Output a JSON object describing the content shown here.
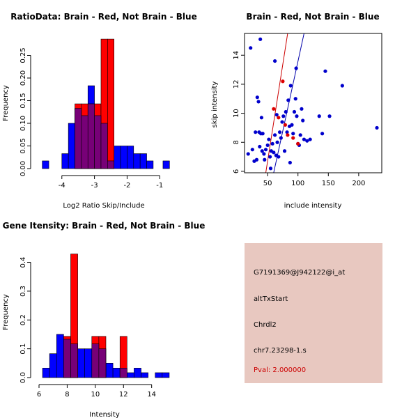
{
  "colors": {
    "red": "#ff0000",
    "blue": "#0000ff",
    "overlap": "#770077",
    "panel_bg": "#e8c8c0",
    "pval": "#cc0000"
  },
  "chart_data": [
    {
      "type": "bar",
      "subtype": "overlaid-histogram",
      "title": "RatioData: Brain - Red, Not Brain - Blue",
      "xlabel": "Log2 Ratio Skip/Include",
      "ylabel": "Frequency",
      "xlim": [
        -4.7,
        -0.6
      ],
      "ylim": [
        0,
        0.28
      ],
      "xticks": [
        -4,
        -3,
        -2,
        -1
      ],
      "yticks": [
        0.0,
        0.05,
        0.1,
        0.15,
        0.2,
        0.25
      ],
      "series": [
        {
          "name": "Not Brain",
          "color": "blue",
          "bins": [
            {
              "x0": -4.6,
              "x1": -4.4,
              "y": 0.017
            },
            {
              "x0": -4.0,
              "x1": -3.8,
              "y": 0.033
            },
            {
              "x0": -3.8,
              "x1": -3.6,
              "y": 0.1
            },
            {
              "x0": -3.6,
              "x1": -3.4,
              "y": 0.133
            },
            {
              "x0": -3.4,
              "x1": -3.2,
              "y": 0.117
            },
            {
              "x0": -3.2,
              "x1": -3.0,
              "y": 0.183
            },
            {
              "x0": -3.0,
              "x1": -2.8,
              "y": 0.117
            },
            {
              "x0": -2.8,
              "x1": -2.6,
              "y": 0.1
            },
            {
              "x0": -2.6,
              "x1": -2.4,
              "y": 0.017
            },
            {
              "x0": -2.4,
              "x1": -2.2,
              "y": 0.05
            },
            {
              "x0": -2.2,
              "x1": -2.0,
              "y": 0.05
            },
            {
              "x0": -2.0,
              "x1": -1.8,
              "y": 0.05
            },
            {
              "x0": -1.8,
              "x1": -1.6,
              "y": 0.033
            },
            {
              "x0": -1.6,
              "x1": -1.4,
              "y": 0.033
            },
            {
              "x0": -1.4,
              "x1": -1.2,
              "y": 0.017
            },
            {
              "x0": -0.9,
              "x1": -0.7,
              "y": 0.017
            }
          ]
        },
        {
          "name": "Brain",
          "color": "red",
          "bins": [
            {
              "x0": -3.6,
              "x1": -3.4,
              "y": 0.143
            },
            {
              "x0": -3.4,
              "x1": -3.2,
              "y": 0.143
            },
            {
              "x0": -3.2,
              "x1": -3.0,
              "y": 0.143
            },
            {
              "x0": -3.0,
              "x1": -2.8,
              "y": 0.143
            },
            {
              "x0": -2.8,
              "x1": -2.6,
              "y": 0.286
            },
            {
              "x0": -2.6,
              "x1": -2.4,
              "y": 0.286
            }
          ]
        }
      ]
    },
    {
      "type": "scatter",
      "title": "Brain - Red, Not Brain - Blue",
      "xlabel": "include intensity",
      "ylabel": "skip intensity",
      "xlim": [
        12,
        238
      ],
      "ylim": [
        5.9,
        15.5
      ],
      "xticks": [
        50,
        100,
        150,
        200
      ],
      "yticks": [
        6,
        8,
        10,
        12,
        14
      ],
      "fit_lines": [
        {
          "name": "Brain fit",
          "color": "red",
          "from": [
            47,
            5.9
          ],
          "to": [
            83,
            15.5
          ]
        },
        {
          "name": "Not Brain fit",
          "color": "blue",
          "from": [
            60,
            5.9
          ],
          "to": [
            110,
            15.5
          ]
        }
      ],
      "series": [
        {
          "name": "Not Brain",
          "color": "blue",
          "points": [
            [
              22,
              14.5
            ],
            [
              38,
              15.1
            ],
            [
              62,
              13.6
            ],
            [
              88,
              11.9
            ],
            [
              97,
              13.1
            ],
            [
              145,
              12.9
            ],
            [
              173,
              11.9
            ],
            [
              230,
              9.0
            ],
            [
              18,
              7.2
            ],
            [
              25,
              7.5
            ],
            [
              28,
              6.7
            ],
            [
              30,
              8.7
            ],
            [
              32,
              6.8
            ],
            [
              33,
              11.1
            ],
            [
              35,
              10.8
            ],
            [
              36,
              8.7
            ],
            [
              37,
              7.7
            ],
            [
              39,
              8.6
            ],
            [
              40,
              9.7
            ],
            [
              41,
              7.4
            ],
            [
              42,
              8.6
            ],
            [
              44,
              7.2
            ],
            [
              45,
              6.8
            ],
            [
              47,
              7.5
            ],
            [
              50,
              7.8
            ],
            [
              52,
              8.2
            ],
            [
              54,
              7.0
            ],
            [
              55,
              6.2
            ],
            [
              56,
              7.4
            ],
            [
              58,
              7.9
            ],
            [
              60,
              7.3
            ],
            [
              62,
              8.5
            ],
            [
              64,
              7.1
            ],
            [
              65,
              9.9
            ],
            [
              66,
              8.0
            ],
            [
              68,
              7.0
            ],
            [
              70,
              8.7
            ],
            [
              72,
              8.3
            ],
            [
              74,
              9.4
            ],
            [
              76,
              9.8
            ],
            [
              78,
              7.4
            ],
            [
              80,
              10.1
            ],
            [
              82,
              8.7
            ],
            [
              84,
              10.9
            ],
            [
              86,
              9.1
            ],
            [
              87,
              6.6
            ],
            [
              90,
              9.2
            ],
            [
              92,
              8.6
            ],
            [
              94,
              10.1
            ],
            [
              96,
              11.0
            ],
            [
              98,
              9.8
            ],
            [
              100,
              7.9
            ],
            [
              102,
              7.8
            ],
            [
              104,
              8.5
            ],
            [
              106,
              10.3
            ],
            [
              108,
              9.5
            ],
            [
              110,
              8.2
            ],
            [
              115,
              8.1
            ],
            [
              120,
              8.2
            ],
            [
              135,
              9.8
            ],
            [
              140,
              8.6
            ],
            [
              152,
              9.8
            ]
          ]
        },
        {
          "name": "Brain",
          "color": "red",
          "points": [
            [
              60,
              10.3
            ],
            [
              68,
              9.7
            ],
            [
              75,
              12.2
            ],
            [
              79,
              9.2
            ],
            [
              83,
              8.5
            ],
            [
              92,
              8.3
            ],
            [
              100,
              7.9
            ]
          ]
        }
      ]
    },
    {
      "type": "bar",
      "subtype": "overlaid-histogram",
      "title": "Gene Itensity: Brain - Red, Not Brain - Blue",
      "xlabel": "Intensity",
      "ylabel": "Frequency",
      "xlim": [
        6,
        15.5
      ],
      "ylim": [
        0,
        0.44
      ],
      "xticks": [
        6,
        8,
        10,
        12,
        14
      ],
      "yticks": [
        0.0,
        0.1,
        0.2,
        0.3,
        0.4
      ],
      "series": [
        {
          "name": "Not Brain",
          "color": "blue",
          "bins": [
            {
              "x0": 6.25,
              "x1": 6.75,
              "y": 0.033
            },
            {
              "x0": 6.75,
              "x1": 7.25,
              "y": 0.083
            },
            {
              "x0": 7.25,
              "x1": 7.75,
              "y": 0.15
            },
            {
              "x0": 7.75,
              "x1": 8.25,
              "y": 0.133
            },
            {
              "x0": 8.25,
              "x1": 8.75,
              "y": 0.117
            },
            {
              "x0": 8.75,
              "x1": 9.25,
              "y": 0.1
            },
            {
              "x0": 9.25,
              "x1": 9.75,
              "y": 0.1
            },
            {
              "x0": 9.75,
              "x1": 10.25,
              "y": 0.117
            },
            {
              "x0": 10.25,
              "x1": 10.75,
              "y": 0.1
            },
            {
              "x0": 10.75,
              "x1": 11.25,
              "y": 0.05
            },
            {
              "x0": 11.25,
              "x1": 11.75,
              "y": 0.033
            },
            {
              "x0": 11.75,
              "x1": 12.25,
              "y": 0.033
            },
            {
              "x0": 12.25,
              "x1": 12.75,
              "y": 0.017
            },
            {
              "x0": 12.75,
              "x1": 13.25,
              "y": 0.033
            },
            {
              "x0": 13.25,
              "x1": 13.75,
              "y": 0.017
            },
            {
              "x0": 14.25,
              "x1": 14.75,
              "y": 0.017
            },
            {
              "x0": 14.75,
              "x1": 15.25,
              "y": 0.017
            }
          ]
        },
        {
          "name": "Brain",
          "color": "red",
          "bins": [
            {
              "x0": 7.75,
              "x1": 8.25,
              "y": 0.143
            },
            {
              "x0": 8.25,
              "x1": 8.75,
              "y": 0.429
            },
            {
              "x0": 9.75,
              "x1": 10.25,
              "y": 0.143
            },
            {
              "x0": 10.25,
              "x1": 10.75,
              "y": 0.143
            },
            {
              "x0": 11.75,
              "x1": 12.25,
              "y": 0.143
            }
          ]
        }
      ]
    }
  ],
  "info": {
    "probe": "G7191369@J942122@i_at",
    "event": "altTxStart",
    "gene": "Chrdl2",
    "locus": "chr7.23298-1.s",
    "pval": "Pval: 2.000000"
  }
}
